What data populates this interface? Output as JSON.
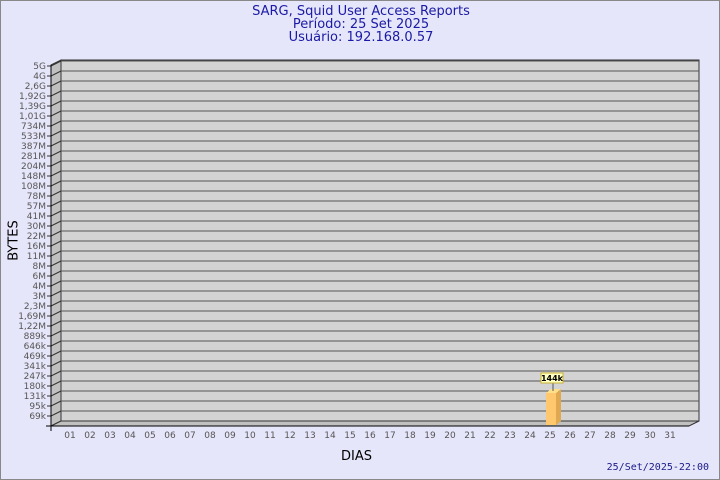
{
  "header": {
    "title": "SARG, Squid User Access Reports",
    "period": "Período: 25 Set 2025",
    "user": "Usuário: 192.168.0.57"
  },
  "footer": {
    "timestamp": "25/Set/2025-22:00"
  },
  "chart_data": {
    "type": "bar",
    "xlabel": "DIAS",
    "ylabel": "BYTES",
    "categories": [
      "01",
      "02",
      "03",
      "04",
      "05",
      "06",
      "07",
      "08",
      "09",
      "10",
      "11",
      "12",
      "13",
      "14",
      "15",
      "16",
      "17",
      "18",
      "19",
      "20",
      "21",
      "22",
      "23",
      "24",
      "25",
      "26",
      "27",
      "28",
      "29",
      "30",
      "31"
    ],
    "y_ticks": [
      "5G",
      "4G",
      "2,6G",
      "1,92G",
      "1,39G",
      "1,01G",
      "734M",
      "533M",
      "387M",
      "281M",
      "204M",
      "148M",
      "108M",
      "78M",
      "57M",
      "41M",
      "30M",
      "22M",
      "16M",
      "11M",
      "8M",
      "6M",
      "4M",
      "3M",
      "2,3M",
      "1,69M",
      "1,22M",
      "889k",
      "646k",
      "469k",
      "341k",
      "247k",
      "180k",
      "131k",
      "95k",
      "69k"
    ],
    "y_scale": "log",
    "series": [
      {
        "values": [
          null,
          null,
          null,
          null,
          null,
          null,
          null,
          null,
          null,
          null,
          null,
          null,
          null,
          null,
          null,
          null,
          null,
          null,
          null,
          null,
          null,
          null,
          null,
          null,
          144000,
          null,
          null,
          null,
          null,
          null,
          null
        ],
        "labels": {
          "25": "144k"
        }
      }
    ],
    "grid": true,
    "colors": {
      "wall": "#d3d3d3",
      "bar": "#ffc86e",
      "bar_side": "#e0a850",
      "bar_top": "#ffe08a",
      "title": "#1a1aa6"
    }
  }
}
